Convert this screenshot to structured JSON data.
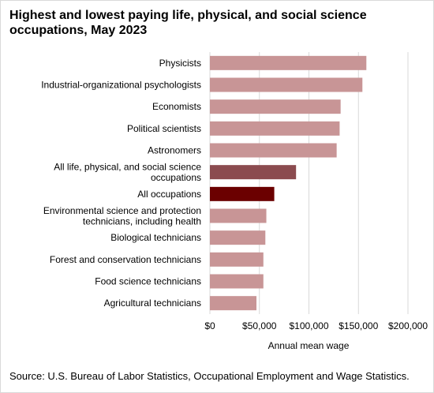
{
  "chart_data": {
    "type": "bar",
    "orientation": "horizontal",
    "title": "Highest and lowest paying life, physical, and social science occupations, May 2023",
    "xlabel": "Annual mean wage",
    "xlim": [
      0,
      200000
    ],
    "xticks": [
      0,
      50000,
      100000,
      150000,
      200000
    ],
    "xtick_labels": [
      "$0",
      "$50,000",
      "$100,000",
      "$150,000",
      "$200,000"
    ],
    "grid": "vertical",
    "categories": [
      [
        "Physicists"
      ],
      [
        "Industrial-organizational psychologists"
      ],
      [
        "Economists"
      ],
      [
        "Political scientists"
      ],
      [
        "Astronomers"
      ],
      [
        "All life, physical, and social science",
        "occupations"
      ],
      [
        "All occupations"
      ],
      [
        "Environmental science and protection",
        "technicians, including health"
      ],
      [
        "Biological technicians"
      ],
      [
        "Forest and conservation technicians"
      ],
      [
        "Food science technicians"
      ],
      [
        "Agricultural technicians"
      ]
    ],
    "values": [
      158000,
      154000,
      132000,
      131000,
      128000,
      87000,
      65000,
      57000,
      56000,
      54000,
      54000,
      47000
    ],
    "bar_colors": [
      "#c89596",
      "#c89596",
      "#c89596",
      "#c89596",
      "#c89596",
      "#8b4b4f",
      "#6b0000",
      "#c89596",
      "#c89596",
      "#c89596",
      "#c89596",
      "#c89596"
    ],
    "source": "Source: U.S. Bureau of Labor Statistics, Occupational Employment and Wage Statistics."
  },
  "colors": {
    "grid": "#d9d9d9",
    "default_bar": "#c89596",
    "group_bar": "#8b4b4f",
    "all_bar": "#6b0000"
  }
}
